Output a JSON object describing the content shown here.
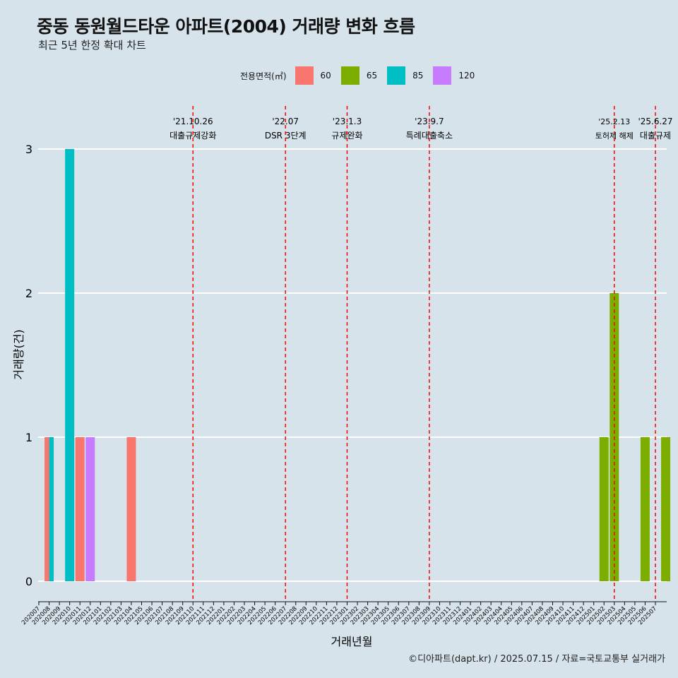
{
  "title": "중동 동원월드타운 아파트(2004) 거래량 변화 흐름",
  "subtitle": "최근 5년 한정 확대 차트",
  "caption": "©디아파트(dapt.kr) / 2025.07.15 / 자료=국토교통부 실거래가",
  "legend": {
    "title": "전용면적(㎡)",
    "items": [
      {
        "label": "60",
        "color": "#F8766D"
      },
      {
        "label": "65",
        "color": "#7CAE00"
      },
      {
        "label": "85",
        "color": "#00BFC4"
      },
      {
        "label": "120",
        "color": "#C77CFF"
      }
    ]
  },
  "chart_data": {
    "type": "bar",
    "xlabel": "거래년월",
    "ylabel": "거래량(건)",
    "ylim": [
      0,
      3
    ],
    "yticks": [
      0,
      1,
      2,
      3
    ],
    "grid": true,
    "categories": [
      "202007",
      "202008",
      "202009",
      "202010",
      "202011",
      "202012",
      "202101",
      "202102",
      "202103",
      "202104",
      "202105",
      "202106",
      "202107",
      "202108",
      "202109",
      "202110",
      "202111",
      "202112",
      "202201",
      "202202",
      "202203",
      "202204",
      "202205",
      "202206",
      "202207",
      "202208",
      "202209",
      "202210",
      "202211",
      "202212",
      "202301",
      "202302",
      "202303",
      "202304",
      "202305",
      "202306",
      "202307",
      "202308",
      "202309",
      "202310",
      "202311",
      "202312",
      "202401",
      "202402",
      "202403",
      "202404",
      "202405",
      "202406",
      "202407",
      "202408",
      "202409",
      "202410",
      "202411",
      "202412",
      "202501",
      "202502",
      "202503",
      "202504",
      "202505",
      "202506",
      "202507"
    ],
    "series": [
      {
        "name": "60",
        "values": {
          "202008": 1,
          "202011": 1,
          "202104": 1
        }
      },
      {
        "name": "65",
        "values": {
          "202502": 1,
          "202503": 2,
          "202506": 1,
          "202508": 1
        }
      },
      {
        "name": "85",
        "values": {
          "202008": 1,
          "202010": 3
        }
      },
      {
        "name": "120",
        "values": {
          "202012": 1
        }
      }
    ],
    "events": [
      {
        "date": "202110",
        "line1": "'21.10.26",
        "line2": "대출규제강화"
      },
      {
        "date": "202207",
        "line1": "'22.07",
        "line2": "DSR 3단계"
      },
      {
        "date": "202301",
        "line1": "'23.1.3",
        "line2": "규제완화"
      },
      {
        "date": "202309",
        "line1": "'23.9.7",
        "line2": "특례대출축소"
      },
      {
        "date": "202503",
        "line1": "'25.2.13",
        "line2": "토허제 해제"
      },
      {
        "date": "202507",
        "line1": "'25.6.27",
        "line2": "대출규제"
      }
    ],
    "event_line_color": "#ff0000"
  }
}
